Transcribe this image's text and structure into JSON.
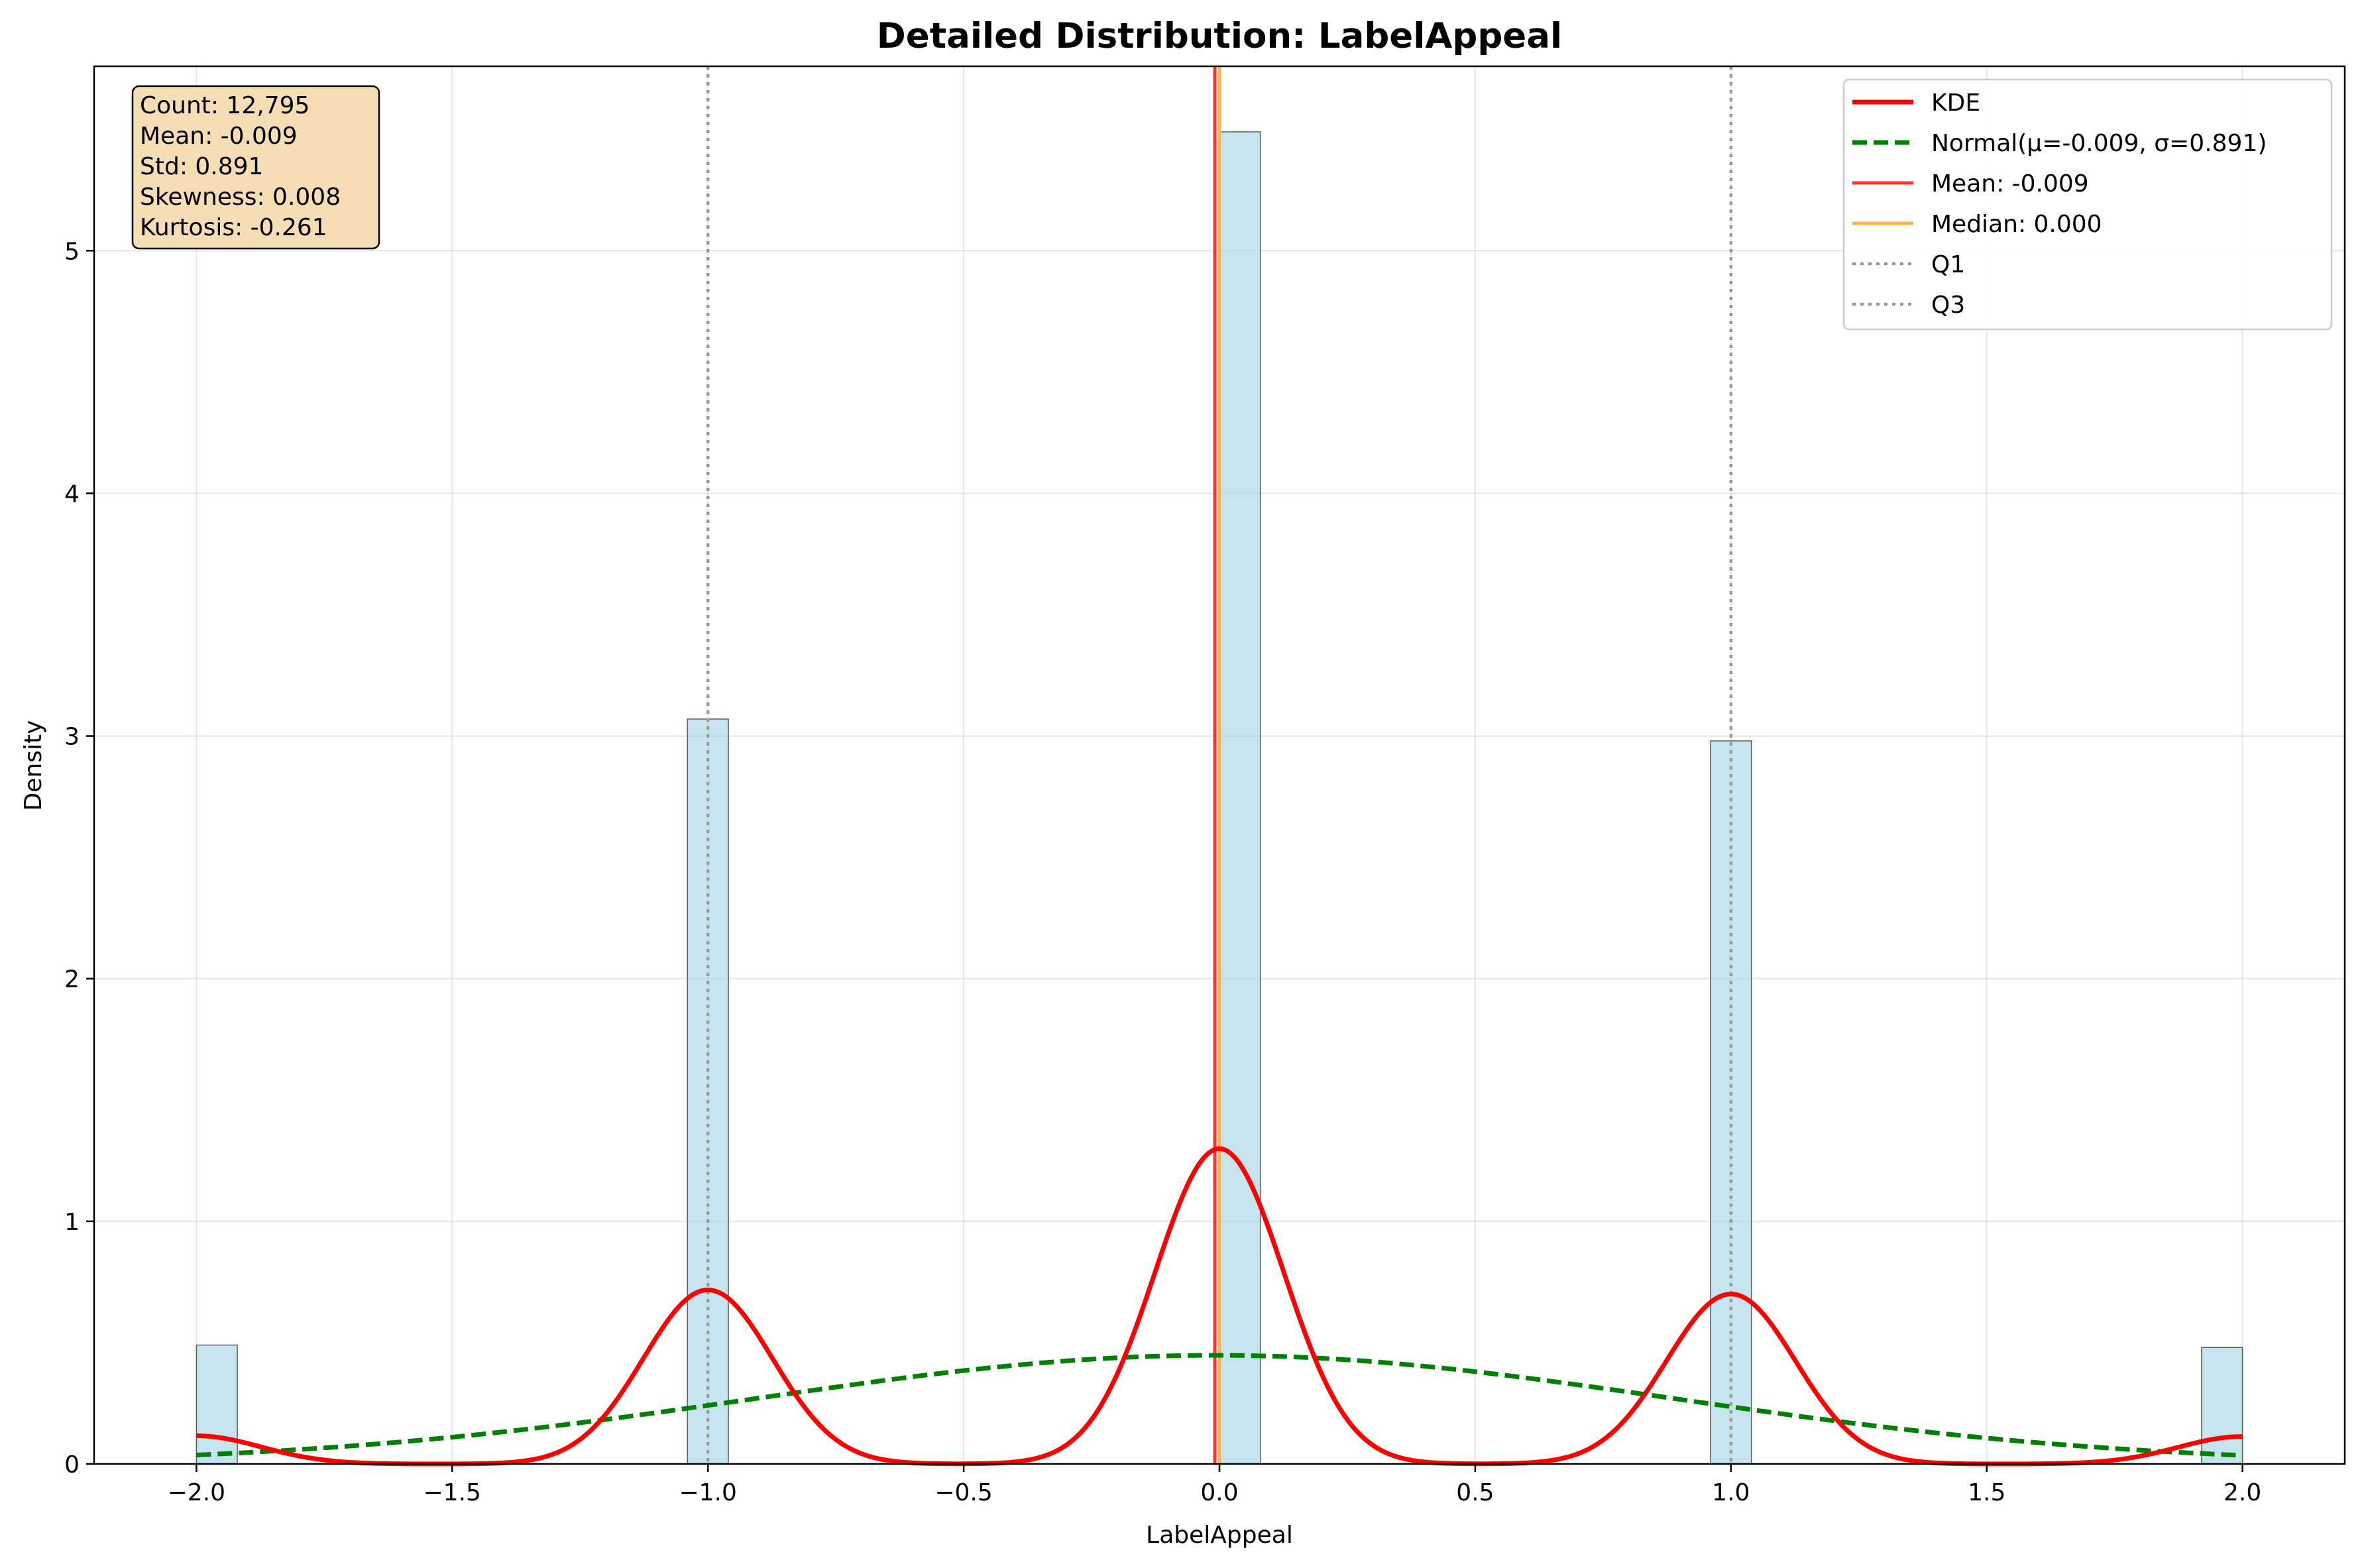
{
  "chart_data": {
    "type": "bar",
    "title": "Detailed Distribution: LabelAppeal",
    "xlabel": "LabelAppeal",
    "ylabel": "Density",
    "xlim": [
      -2.2,
      2.2
    ],
    "ylim": [
      0,
      5.76
    ],
    "xticks": [
      -2.0,
      -1.5,
      -1.0,
      -0.5,
      0.0,
      0.5,
      1.0,
      1.5,
      2.0
    ],
    "xtick_labels": [
      "−2.0",
      "−1.5",
      "−1.0",
      "−0.5",
      "0.0",
      "0.5",
      "1.0",
      "1.5",
      "2.0"
    ],
    "yticks": [
      0,
      1,
      2,
      3,
      4,
      5
    ],
    "ytick_labels": [
      "0",
      "1",
      "2",
      "3",
      "4",
      "5"
    ],
    "grid": true,
    "legend_position": "top-right",
    "histogram": {
      "bin_width": 0.08,
      "bars": [
        {
          "x0": -2.0,
          "x1": -1.92,
          "density": 0.49
        },
        {
          "x0": -1.04,
          "x1": -0.96,
          "density": 3.07
        },
        {
          "x0": 0.0,
          "x1": 0.08,
          "density": 5.49
        },
        {
          "x0": 0.96,
          "x1": 1.04,
          "density": 2.98
        },
        {
          "x0": 1.92,
          "x1": 2.0,
          "density": 0.48
        }
      ],
      "color": "#add8e6"
    },
    "series": [
      {
        "name": "KDE",
        "kind": "line",
        "color": "#ff0000"
      },
      {
        "name": "Normal(μ=-0.009, σ=0.891)",
        "kind": "dashed-line",
        "color": "#008000",
        "mu": -0.009,
        "sigma": 0.891
      },
      {
        "name": "Mean: -0.009",
        "kind": "vline",
        "color": "#ff3333",
        "x": -0.009
      },
      {
        "name": "Median: 0.000",
        "kind": "vline",
        "color": "#ffb347",
        "x": 0.0
      },
      {
        "name": "Q1",
        "kind": "dotted-vline",
        "color": "#999999",
        "x": -1.0
      },
      {
        "name": "Q3",
        "kind": "dotted-vline",
        "color": "#999999",
        "x": 1.0
      }
    ],
    "kde": {
      "components": [
        {
          "center": -2.0,
          "weight": 0.0367
        },
        {
          "center": -1.0,
          "weight": 0.2269
        },
        {
          "center": 0.0,
          "weight": 0.411
        },
        {
          "center": 1.0,
          "weight": 0.2215
        },
        {
          "center": 2.0,
          "weight": 0.0358
        }
      ],
      "bandwidth": 0.1262,
      "x_range": [
        -2.0,
        2.0
      ],
      "peaks": [
        {
          "x": -2.0,
          "y": 0.12
        },
        {
          "x": -1.0,
          "y": 0.72
        },
        {
          "x": 0.0,
          "y": 1.3
        },
        {
          "x": 1.0,
          "y": 0.7
        },
        {
          "x": 2.0,
          "y": 0.11
        }
      ]
    },
    "stats_box": {
      "lines": [
        "Count: 12,795",
        "Mean: -0.009",
        "Std: 0.891",
        "Skewness: 0.008",
        "Kurtosis: -0.261"
      ],
      "background": "#f5deb3"
    }
  }
}
